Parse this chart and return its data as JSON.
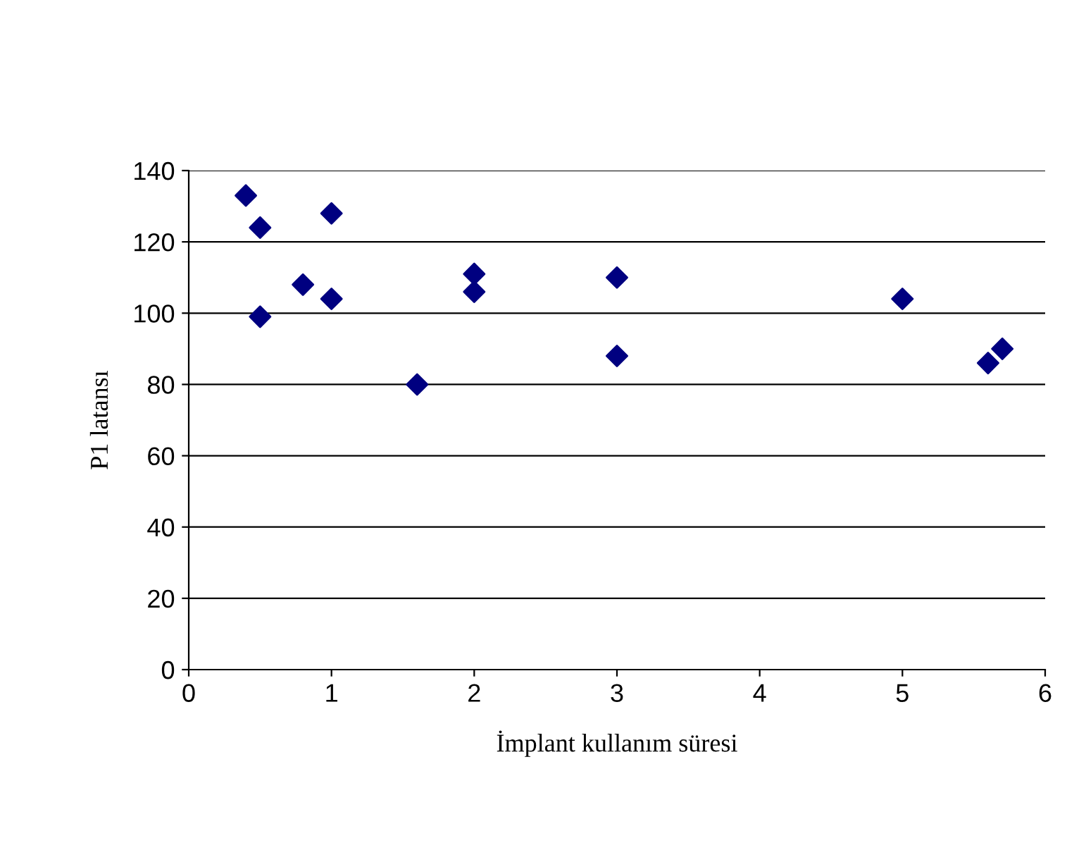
{
  "chart_data": {
    "type": "scatter",
    "xlabel": "İmplant kullanım süresi",
    "ylabel": "P1 latansı",
    "x": [
      0.4,
      0.5,
      0.5,
      0.8,
      1.0,
      1.0,
      1.6,
      2.0,
      2.0,
      3.0,
      3.0,
      5.0,
      5.6,
      5.7
    ],
    "series": [
      {
        "color": "#000080",
        "values": [
          133,
          124,
          99,
          108,
          128,
          104,
          80,
          111,
          106,
          110,
          88,
          104,
          86,
          90
        ]
      }
    ],
    "xlim": [
      0,
      6
    ],
    "xticks": [
      0,
      1,
      2,
      3,
      4,
      5,
      6
    ],
    "ylim": [
      0,
      140
    ],
    "yticks": [
      0,
      20,
      40,
      60,
      80,
      100,
      120,
      140
    ],
    "grid": "y",
    "marker": "diamond",
    "legend": false
  }
}
